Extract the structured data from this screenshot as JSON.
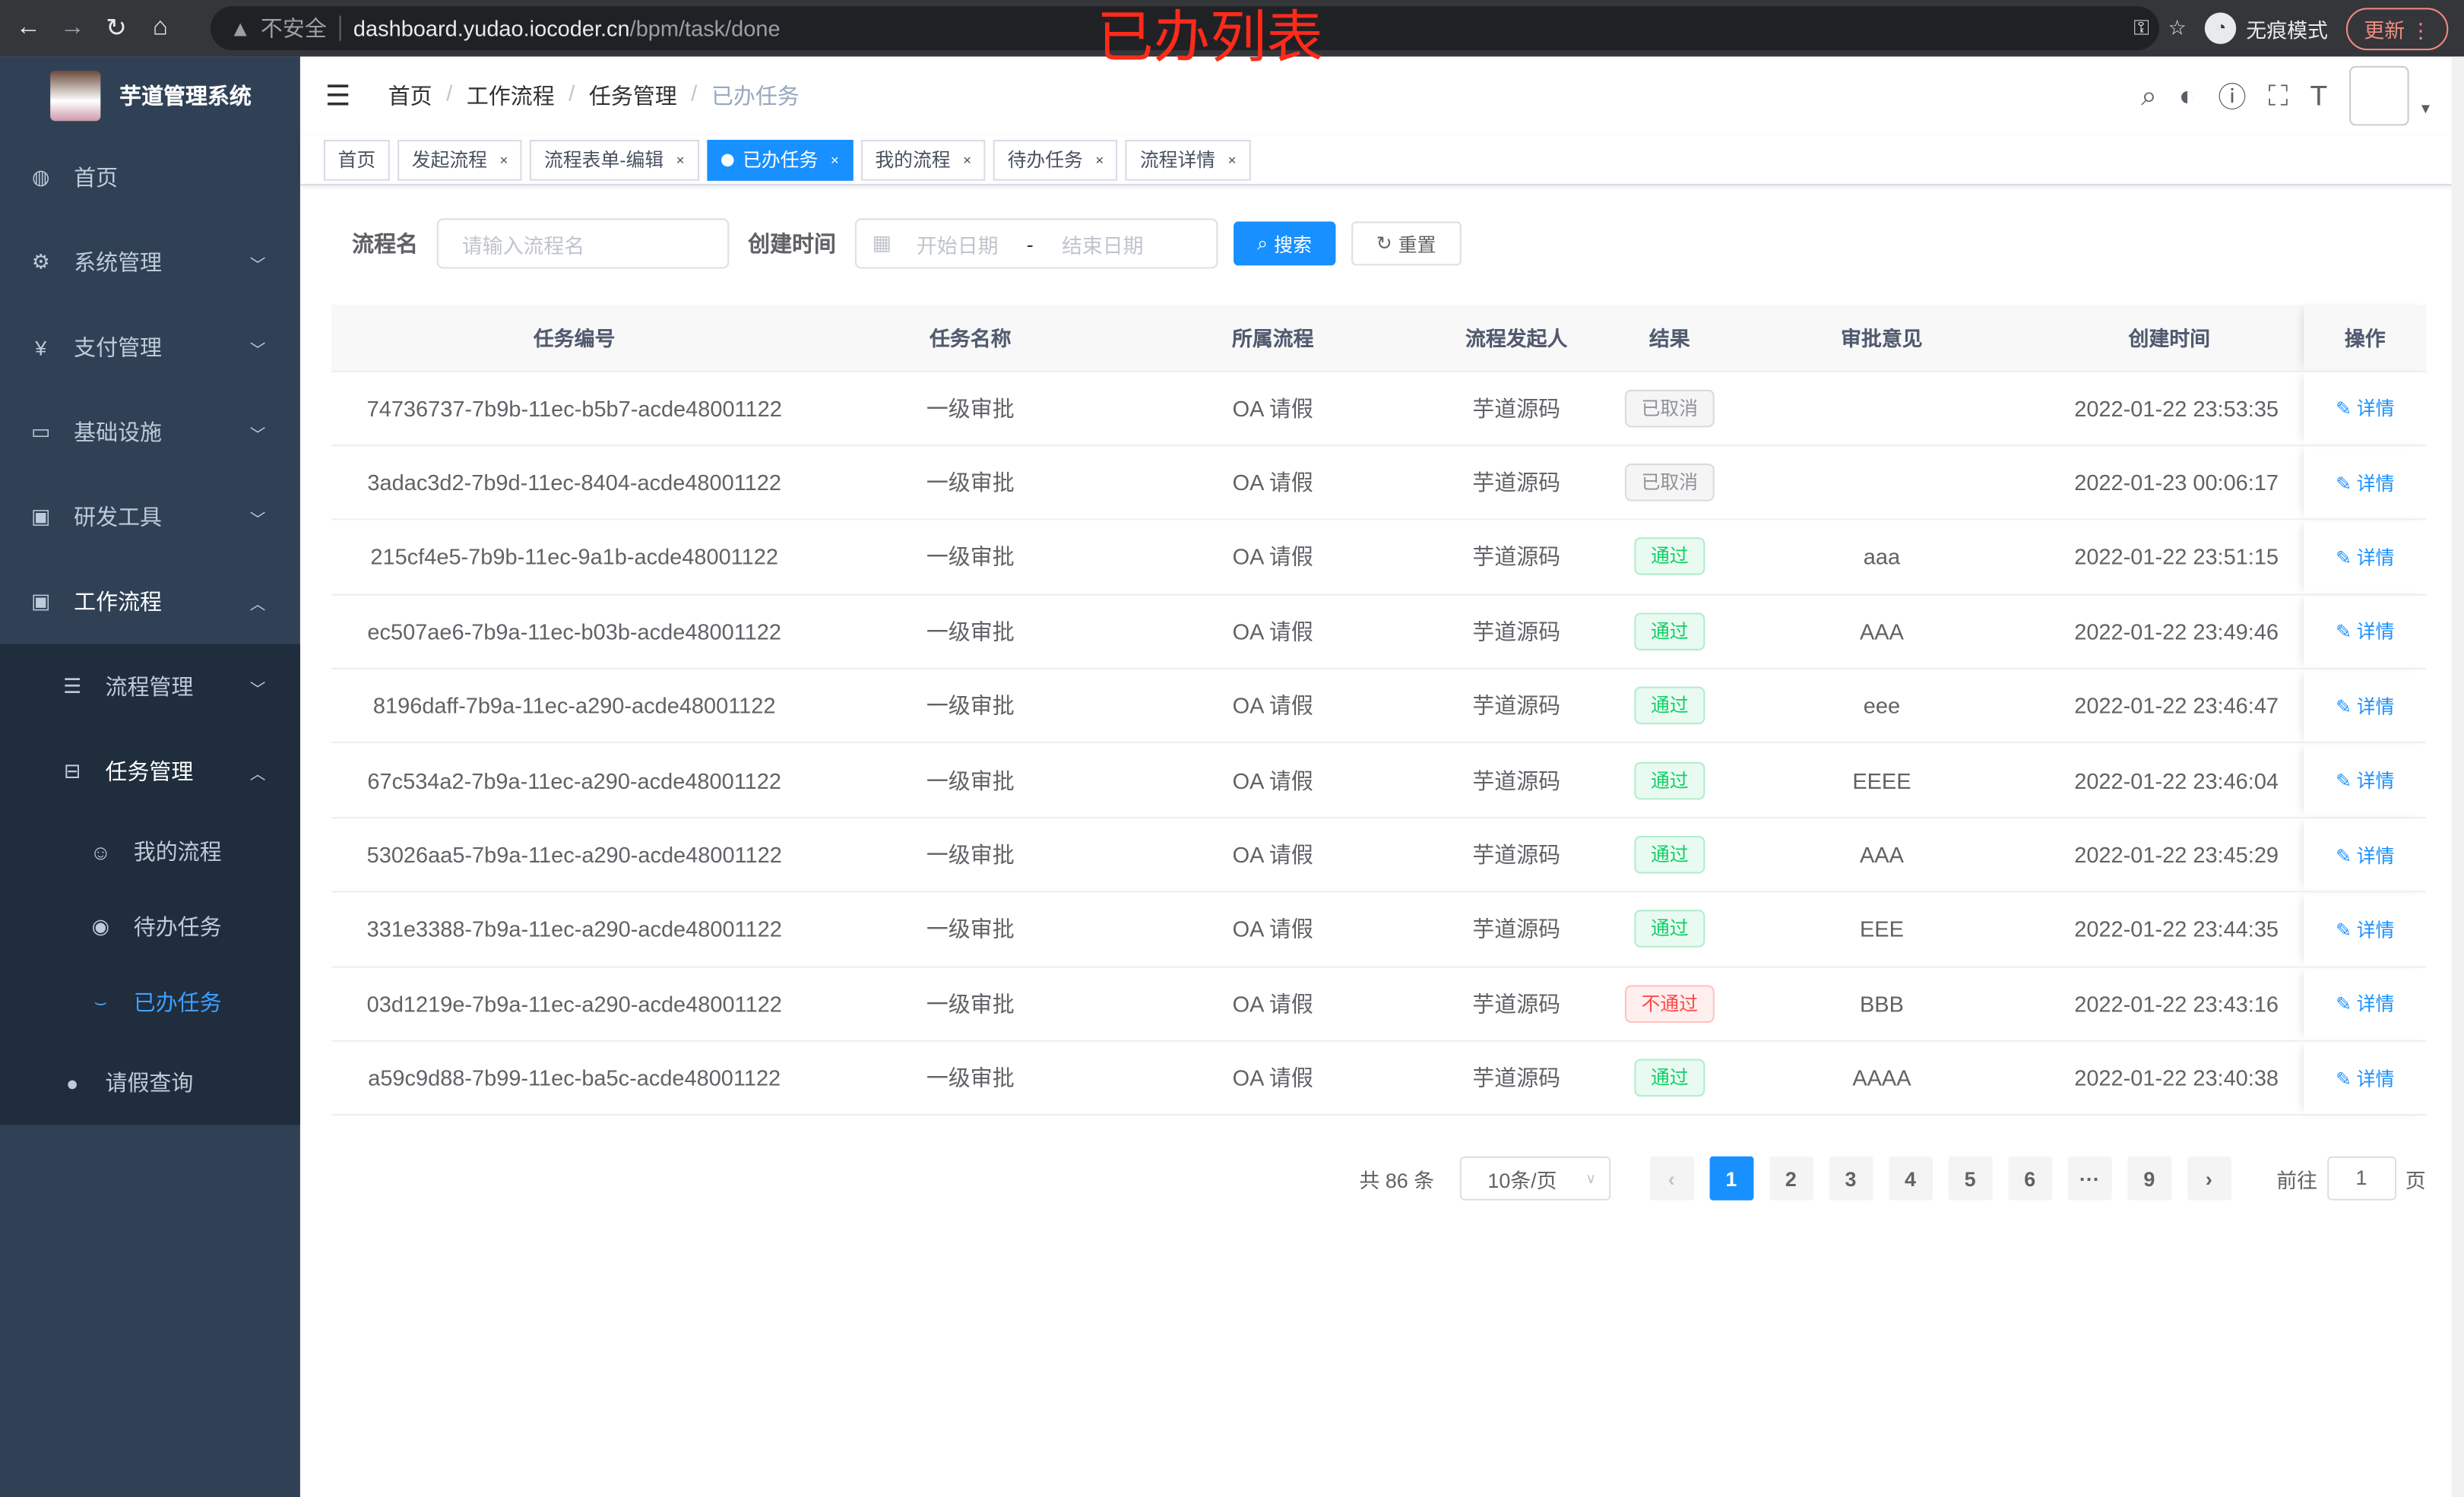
{
  "browser": {
    "insecure_label": "不安全",
    "url_host": "dashboard.yudao.iocoder.cn",
    "url_path": "/bpm/task/done",
    "incognito_label": "无痕模式",
    "update_label": "更新"
  },
  "annotation": "已办列表",
  "app": {
    "title": "芋道管理系统"
  },
  "sidebar": {
    "items": [
      {
        "label": "首页",
        "icon": "dashboard-icon"
      },
      {
        "label": "系统管理",
        "icon": "gear-icon"
      },
      {
        "label": "支付管理",
        "icon": "yen-icon"
      },
      {
        "label": "基础设施",
        "icon": "monitor-icon"
      },
      {
        "label": "研发工具",
        "icon": "toolbox-icon"
      },
      {
        "label": "工作流程",
        "icon": "toolbox-icon"
      }
    ],
    "workflow_children": [
      {
        "label": "流程管理"
      },
      {
        "label": "任务管理"
      }
    ],
    "task_children": [
      {
        "label": "我的流程"
      },
      {
        "label": "待办任务"
      },
      {
        "label": "已办任务"
      }
    ],
    "leave": {
      "label": "请假查询"
    }
  },
  "breadcrumb": [
    "首页",
    "工作流程",
    "任务管理",
    "已办任务"
  ],
  "tags": [
    {
      "label": "首页"
    },
    {
      "label": "发起流程"
    },
    {
      "label": "流程表单-编辑"
    },
    {
      "label": "已办任务"
    },
    {
      "label": "我的流程"
    },
    {
      "label": "待办任务"
    },
    {
      "label": "流程详情"
    }
  ],
  "filter": {
    "name_label": "流程名",
    "name_placeholder": "请输入流程名",
    "time_label": "创建时间",
    "start_placeholder": "开始日期",
    "range_sep": "-",
    "end_placeholder": "结束日期",
    "search_label": "搜索",
    "reset_label": "重置"
  },
  "table": {
    "headers": [
      "任务编号",
      "任务名称",
      "所属流程",
      "流程发起人",
      "结果",
      "审批意见",
      "创建时间",
      "操作"
    ],
    "rows": [
      [
        "74736737-7b9b-11ec-b5b7-acde48001122",
        "一级审批",
        "OA 请假",
        "芋道源码",
        "已取消",
        "",
        "2022-01-22 23:53:35",
        "详情"
      ],
      [
        "3adac3d2-7b9d-11ec-8404-acde48001122",
        "一级审批",
        "OA 请假",
        "芋道源码",
        "已取消",
        "",
        "2022-01-23 00:06:17",
        "详情"
      ],
      [
        "215cf4e5-7b9b-11ec-9a1b-acde48001122",
        "一级审批",
        "OA 请假",
        "芋道源码",
        "通过",
        "aaa",
        "2022-01-22 23:51:15",
        "详情"
      ],
      [
        "ec507ae6-7b9a-11ec-b03b-acde48001122",
        "一级审批",
        "OA 请假",
        "芋道源码",
        "通过",
        "AAA",
        "2022-01-22 23:49:46",
        "详情"
      ],
      [
        "8196daff-7b9a-11ec-a290-acde48001122",
        "一级审批",
        "OA 请假",
        "芋道源码",
        "通过",
        "eee",
        "2022-01-22 23:46:47",
        "详情"
      ],
      [
        "67c534a2-7b9a-11ec-a290-acde48001122",
        "一级审批",
        "OA 请假",
        "芋道源码",
        "通过",
        "EEEE",
        "2022-01-22 23:46:04",
        "详情"
      ],
      [
        "53026aa5-7b9a-11ec-a290-acde48001122",
        "一级审批",
        "OA 请假",
        "芋道源码",
        "通过",
        "AAA",
        "2022-01-22 23:45:29",
        "详情"
      ],
      [
        "331e3388-7b9a-11ec-a290-acde48001122",
        "一级审批",
        "OA 请假",
        "芋道源码",
        "通过",
        "EEE",
        "2022-01-22 23:44:35",
        "详情"
      ],
      [
        "03d1219e-7b9a-11ec-a290-acde48001122",
        "一级审批",
        "OA 请假",
        "芋道源码",
        "不通过",
        "BBB",
        "2022-01-22 23:43:16",
        "详情"
      ],
      [
        "a59c9d88-7b99-11ec-ba5c-acde48001122",
        "一级审批",
        "OA 请假",
        "芋道源码",
        "通过",
        "AAAA",
        "2022-01-22 23:40:38",
        "详情"
      ]
    ]
  },
  "result_colors": {
    "已取消": "#909399",
    "通过": "#13ce66",
    "不通过": "#ff4949"
  },
  "pagination": {
    "total": "共 86 条",
    "page_size": "10条/页",
    "pages": [
      "1",
      "2",
      "3",
      "4",
      "5",
      "6",
      "···",
      "9"
    ],
    "current": "1",
    "goto_label": "前往",
    "goto_value": "1",
    "page_suffix": "页"
  }
}
